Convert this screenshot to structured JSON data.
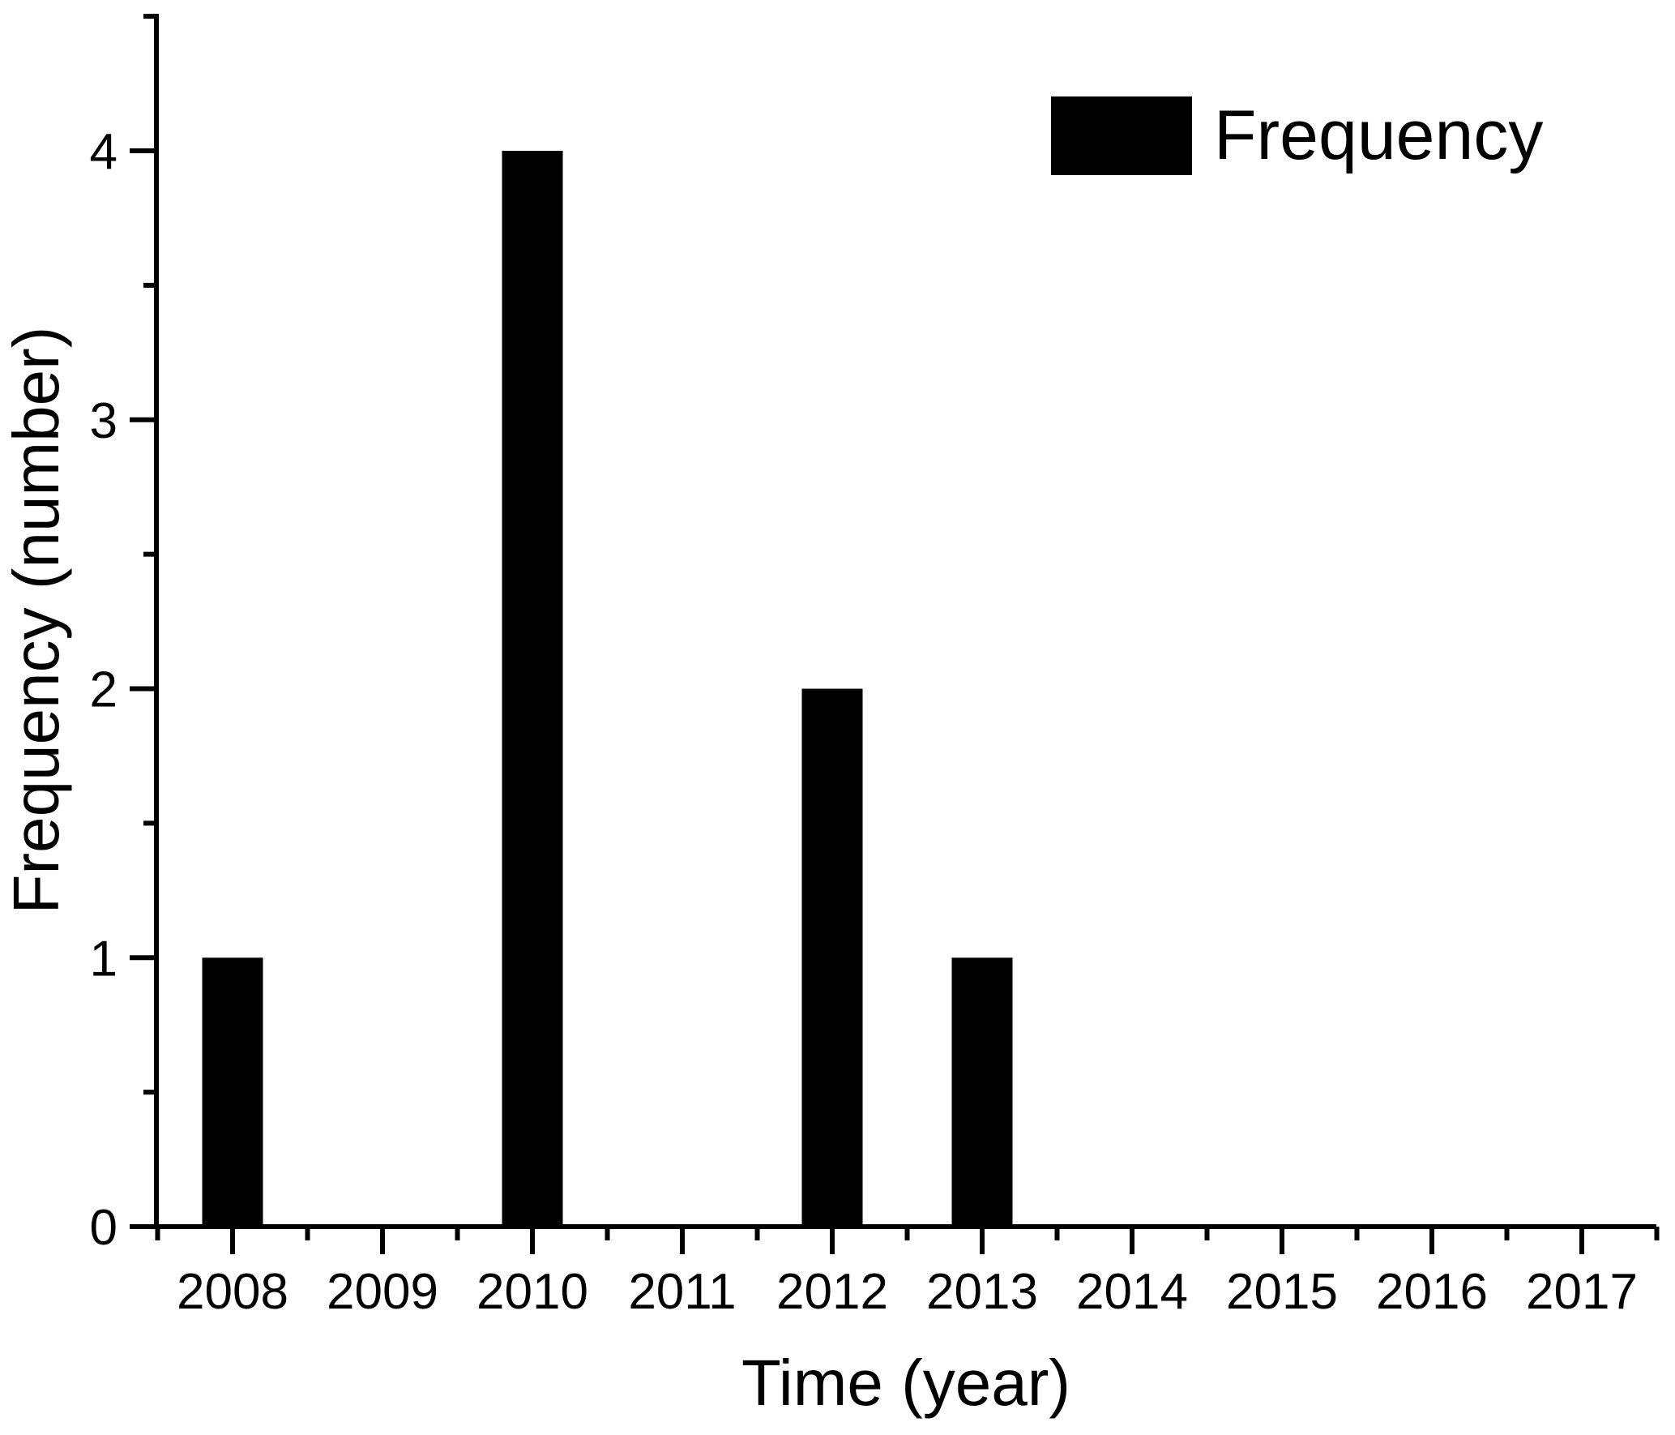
{
  "chart_data": {
    "type": "bar",
    "title": "",
    "xlabel": "Time (year)",
    "ylabel": "Frequency (number)",
    "legend": [
      {
        "label": "Frequency",
        "color": "#000000"
      }
    ],
    "legend_position": "top-right",
    "categories": [
      2008,
      2009,
      2010,
      2011,
      2012,
      2013,
      2014,
      2015,
      2016,
      2017
    ],
    "values": [
      1,
      0,
      4,
      0,
      2,
      1,
      0,
      0,
      0,
      0
    ],
    "series": [
      {
        "name": "Frequency",
        "values": [
          1,
          0,
          4,
          0,
          2,
          1,
          0,
          0,
          0,
          0
        ]
      }
    ],
    "xlim": [
      2007.2,
      2017.5
    ],
    "ylim": [
      0,
      4.5
    ],
    "y_major_ticks": [
      0,
      1,
      2,
      3,
      4
    ],
    "y_minor_ticks": [
      0.5,
      1.5,
      2.5,
      3.5,
      4.5
    ],
    "x_minor_step": 0.5,
    "grid": false,
    "bar_color": "#000000",
    "axis_color": "#000000",
    "background_color": "#ffffff"
  }
}
